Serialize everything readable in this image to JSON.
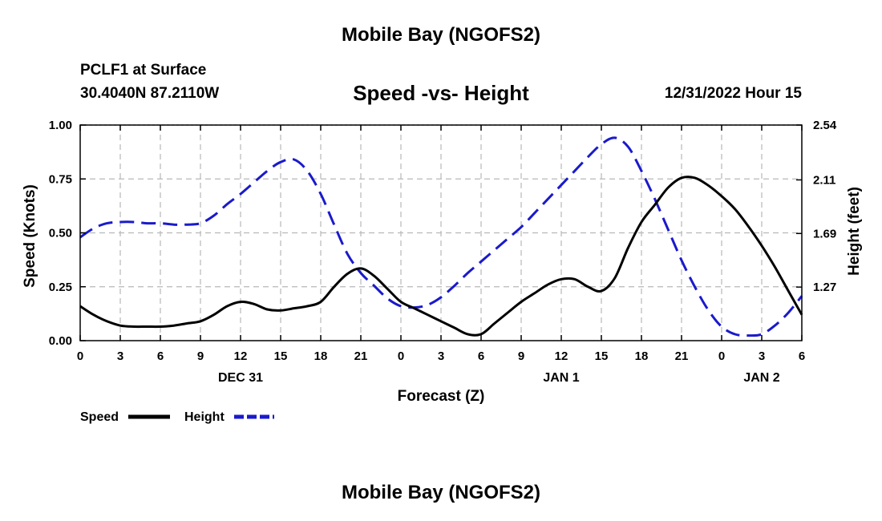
{
  "header": {
    "title": "Mobile Bay (NGOFS2)",
    "station": "PCLF1 at Surface",
    "coords": "30.4040N  87.2110W",
    "date_hour": "12/31/2022 Hour 15",
    "bottom_title": "Mobile Bay (NGOFS2)"
  },
  "chart_data": {
    "type": "line",
    "title": "Speed -vs- Height",
    "xlabel": "Forecast (Z)",
    "ylabel_left": "Speed (Knots)",
    "ylabel_right": "Height (feet)",
    "x_hours": [
      0,
      1,
      2,
      3,
      4,
      5,
      6,
      7,
      8,
      9,
      10,
      11,
      12,
      13,
      14,
      15,
      16,
      17,
      18,
      19,
      20,
      21,
      22,
      23,
      24,
      25,
      26,
      27,
      28,
      29,
      30,
      31,
      32,
      33,
      34,
      35,
      36,
      37,
      38,
      39,
      40,
      41,
      42,
      43,
      44,
      45,
      46,
      47,
      48,
      49,
      50,
      51,
      52,
      53,
      54
    ],
    "x_ticks": [
      "0",
      "3",
      "6",
      "9",
      "12",
      "15",
      "18",
      "21",
      "0",
      "3",
      "6",
      "9",
      "12",
      "15",
      "18",
      "21",
      "0",
      "3",
      "6"
    ],
    "x_tick_hours": [
      0,
      3,
      6,
      9,
      12,
      15,
      18,
      21,
      24,
      27,
      30,
      33,
      36,
      39,
      42,
      45,
      48,
      51,
      54
    ],
    "date_labels": [
      {
        "text": "DEC 31",
        "hour": 12
      },
      {
        "text": "JAN 1",
        "hour": 36
      },
      {
        "text": "JAN 2",
        "hour": 51
      }
    ],
    "ylim_left": [
      0,
      1
    ],
    "yticks_left": [
      "0.00",
      "0.25",
      "0.50",
      "0.75",
      "1.00"
    ],
    "ylim_right": [
      0.85,
      2.54
    ],
    "yticks_right": [
      "1.27",
      "1.69",
      "2.11",
      "2.54"
    ],
    "grid": true,
    "legend_position": "bottom-left",
    "series": [
      {
        "name": "Speed",
        "axis": "left",
        "color": "#000000",
        "style": "solid",
        "values": [
          0.16,
          0.12,
          0.09,
          0.07,
          0.065,
          0.065,
          0.065,
          0.07,
          0.08,
          0.09,
          0.12,
          0.16,
          0.18,
          0.17,
          0.145,
          0.14,
          0.15,
          0.16,
          0.18,
          0.25,
          0.31,
          0.335,
          0.3,
          0.24,
          0.18,
          0.15,
          0.12,
          0.09,
          0.06,
          0.03,
          0.03,
          0.08,
          0.13,
          0.18,
          0.22,
          0.26,
          0.285,
          0.285,
          0.25,
          0.23,
          0.29,
          0.43,
          0.55,
          0.63,
          0.71,
          0.755,
          0.755,
          0.72,
          0.67,
          0.61,
          0.53,
          0.44,
          0.34,
          0.23,
          0.12
        ]
      },
      {
        "name": "Height",
        "axis": "right",
        "color": "#1a1acc",
        "style": "dashed",
        "values": [
          1.66,
          1.73,
          1.77,
          1.78,
          1.78,
          1.77,
          1.77,
          1.76,
          1.76,
          1.77,
          1.83,
          1.92,
          2.0,
          2.09,
          2.18,
          2.25,
          2.27,
          2.18,
          2.0,
          1.76,
          1.53,
          1.38,
          1.28,
          1.18,
          1.12,
          1.11,
          1.13,
          1.19,
          1.28,
          1.38,
          1.47,
          1.56,
          1.65,
          1.74,
          1.85,
          1.96,
          2.07,
          2.18,
          2.29,
          2.39,
          2.44,
          2.37,
          2.18,
          1.96,
          1.72,
          1.48,
          1.27,
          1.09,
          0.96,
          0.9,
          0.89,
          0.9,
          0.97,
          1.07,
          1.2
        ]
      }
    ]
  }
}
